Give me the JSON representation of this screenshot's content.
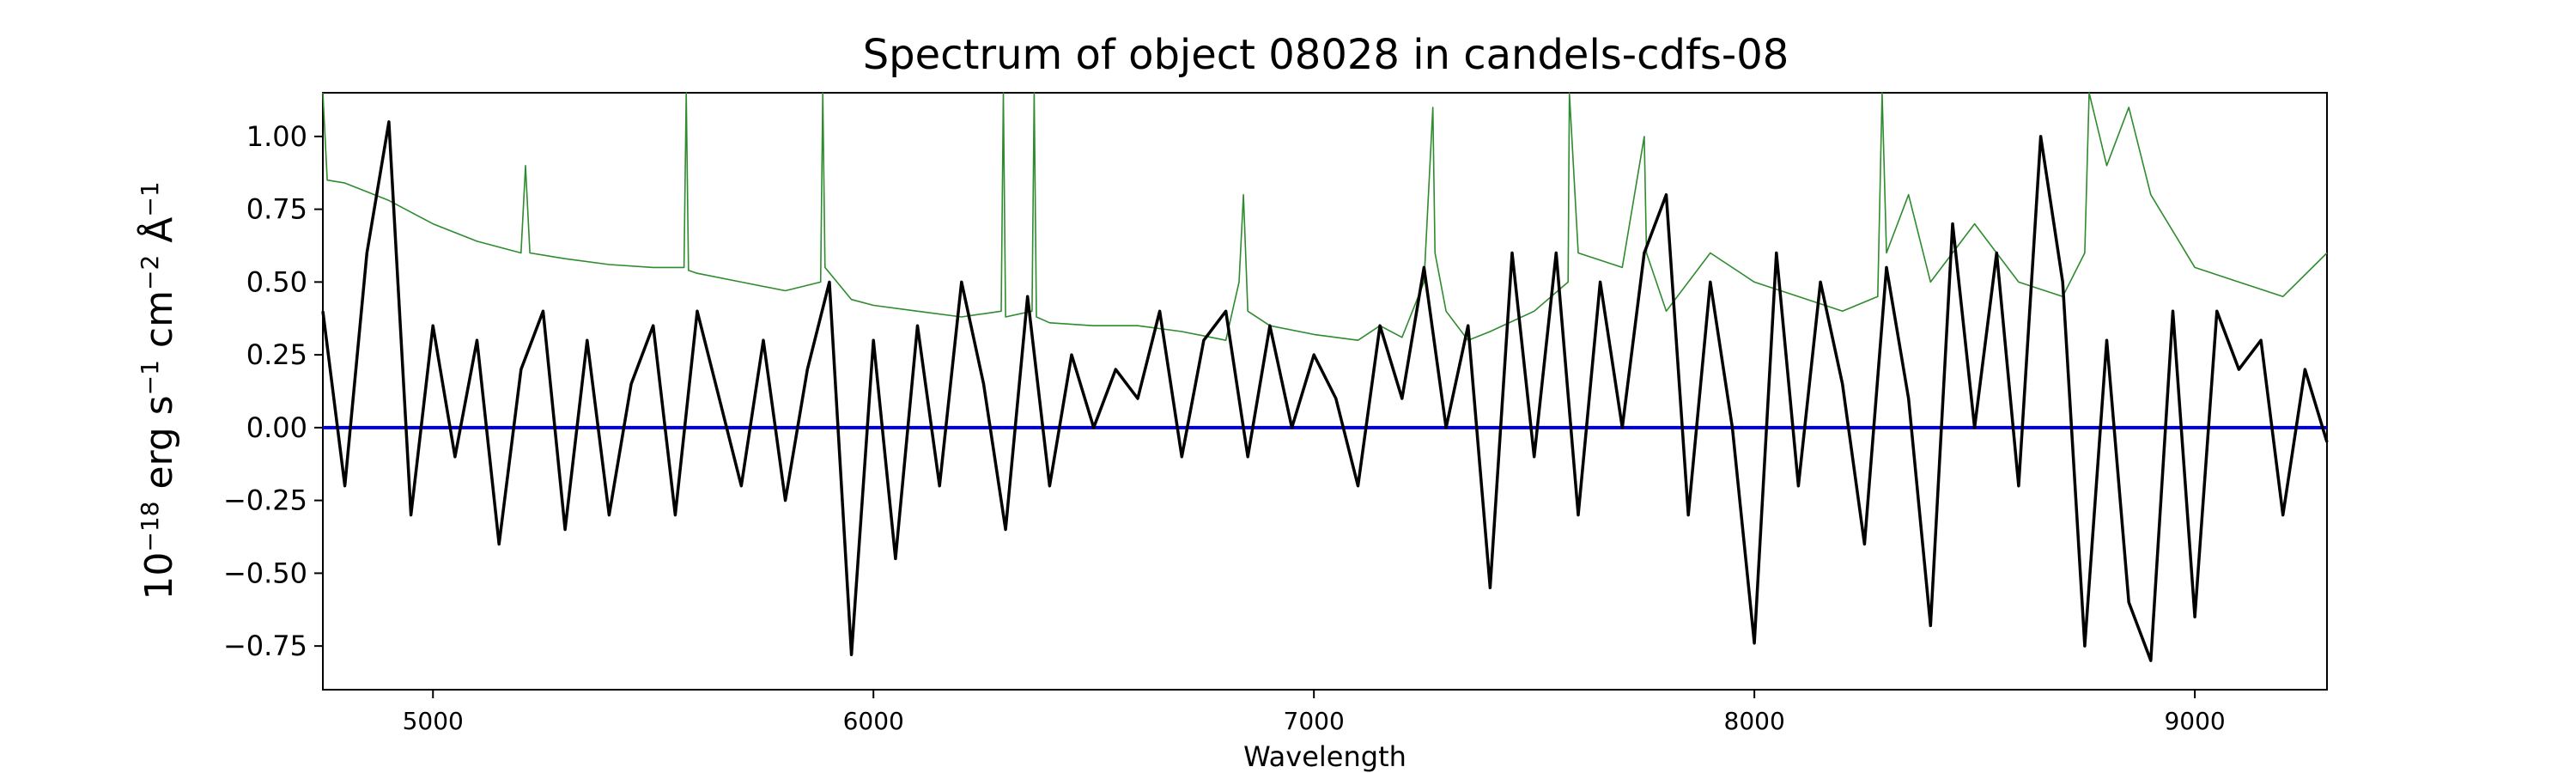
{
  "chart_data": {
    "type": "line",
    "title": "Spectrum of object 08028 in candels-cdfs-08",
    "xlabel": "Wavelength",
    "ylabel_parts": [
      "10",
      "−18",
      " erg s",
      "−1",
      " cm",
      "−2",
      " Å",
      "−1"
    ],
    "xlim": [
      4750,
      9300
    ],
    "ylim": [
      -0.9,
      1.15
    ],
    "xticks": [
      5000,
      6000,
      7000,
      8000,
      9000
    ],
    "xtick_labels": [
      "5000",
      "6000",
      "7000",
      "8000",
      "9000"
    ],
    "yticks": [
      -0.75,
      -0.5,
      -0.25,
      0.0,
      0.25,
      0.5,
      0.75,
      1.0
    ],
    "ytick_labels": [
      "−0.75",
      "−0.50",
      "−0.25",
      "0.00",
      "0.25",
      "0.50",
      "0.75",
      "1.00"
    ],
    "grid": false,
    "series": [
      {
        "key": "flux",
        "color": "#000000",
        "x": [
          4750,
          4800,
          4850,
          4900,
          4950,
          5000,
          5050,
          5100,
          5150,
          5200,
          5250,
          5300,
          5350,
          5400,
          5450,
          5500,
          5550,
          5600,
          5650,
          5700,
          5750,
          5800,
          5850,
          5900,
          5950,
          6000,
          6050,
          6100,
          6150,
          6200,
          6250,
          6300,
          6350,
          6400,
          6450,
          6500,
          6550,
          6600,
          6650,
          6700,
          6750,
          6800,
          6850,
          6900,
          6950,
          7000,
          7050,
          7100,
          7150,
          7200,
          7250,
          7300,
          7350,
          7400,
          7450,
          7500,
          7550,
          7600,
          7650,
          7700,
          7750,
          7800,
          7850,
          7900,
          7950,
          8000,
          8050,
          8100,
          8150,
          8200,
          8250,
          8300,
          8350,
          8400,
          8450,
          8500,
          8550,
          8600,
          8650,
          8700,
          8750,
          8800,
          8850,
          8900,
          8950,
          9000,
          9050,
          9100,
          9150,
          9200,
          9250,
          9300
        ],
        "y": [
          0.4,
          -0.2,
          0.6,
          1.05,
          -0.3,
          0.35,
          -0.1,
          0.3,
          -0.4,
          0.2,
          0.4,
          -0.35,
          0.3,
          -0.3,
          0.15,
          0.35,
          -0.3,
          0.4,
          0.1,
          -0.2,
          0.3,
          -0.25,
          0.2,
          0.5,
          -0.78,
          0.3,
          -0.45,
          0.35,
          -0.2,
          0.5,
          0.15,
          -0.35,
          0.45,
          -0.2,
          0.25,
          0.0,
          0.2,
          0.1,
          0.4,
          -0.1,
          0.3,
          0.4,
          -0.1,
          0.35,
          0.0,
          0.25,
          0.1,
          -0.2,
          0.35,
          0.1,
          0.55,
          0.0,
          0.35,
          -0.55,
          0.6,
          -0.1,
          0.6,
          -0.3,
          0.5,
          0.0,
          0.6,
          0.8,
          -0.3,
          0.5,
          0.0,
          -0.74,
          0.6,
          -0.2,
          0.5,
          0.15,
          -0.4,
          0.55,
          0.1,
          -0.68,
          0.7,
          0.0,
          0.6,
          -0.2,
          1.0,
          0.5,
          -0.75,
          0.3,
          -0.6,
          -0.8,
          0.4,
          -0.65,
          0.4,
          0.2,
          0.3,
          -0.3,
          0.2,
          -0.05
        ]
      },
      {
        "key": "error",
        "color": "#2e8b2e",
        "x": [
          4750,
          4760,
          4800,
          4900,
          5000,
          5100,
          5200,
          5210,
          5220,
          5300,
          5400,
          5500,
          5570,
          5575,
          5580,
          5600,
          5700,
          5800,
          5880,
          5885,
          5890,
          5950,
          6000,
          6100,
          6200,
          6290,
          6295,
          6300,
          6360,
          6365,
          6370,
          6400,
          6500,
          6600,
          6700,
          6800,
          6830,
          6840,
          6850,
          6900,
          7000,
          7100,
          7150,
          7200,
          7250,
          7270,
          7275,
          7300,
          7350,
          7400,
          7500,
          7577,
          7580,
          7600,
          7700,
          7750,
          7755,
          7800,
          7900,
          8000,
          8100,
          8200,
          8280,
          8290,
          8300,
          8350,
          8400,
          8500,
          8600,
          8700,
          8750,
          8760,
          8800,
          8850,
          8900,
          9000,
          9100,
          9200,
          9300
        ],
        "y": [
          1.15,
          0.85,
          0.84,
          0.78,
          0.7,
          0.64,
          0.6,
          0.9,
          0.6,
          0.58,
          0.56,
          0.55,
          0.55,
          1.15,
          0.54,
          0.53,
          0.5,
          0.47,
          0.5,
          1.15,
          0.55,
          0.44,
          0.42,
          0.4,
          0.38,
          0.4,
          1.15,
          0.38,
          0.4,
          1.15,
          0.38,
          0.36,
          0.35,
          0.35,
          0.33,
          0.3,
          0.5,
          0.8,
          0.4,
          0.35,
          0.32,
          0.3,
          0.35,
          0.31,
          0.5,
          1.1,
          0.6,
          0.4,
          0.3,
          0.33,
          0.4,
          0.5,
          1.15,
          0.6,
          0.55,
          1.0,
          0.6,
          0.4,
          0.6,
          0.5,
          0.45,
          0.4,
          0.45,
          1.15,
          0.6,
          0.8,
          0.5,
          0.7,
          0.5,
          0.45,
          0.6,
          1.15,
          0.9,
          1.1,
          0.8,
          0.55,
          0.5,
          0.45,
          0.6
        ]
      },
      {
        "key": "zero",
        "color": "#0000cc",
        "x": [
          4750,
          9300
        ],
        "y": [
          0.0,
          0.0
        ]
      }
    ]
  }
}
